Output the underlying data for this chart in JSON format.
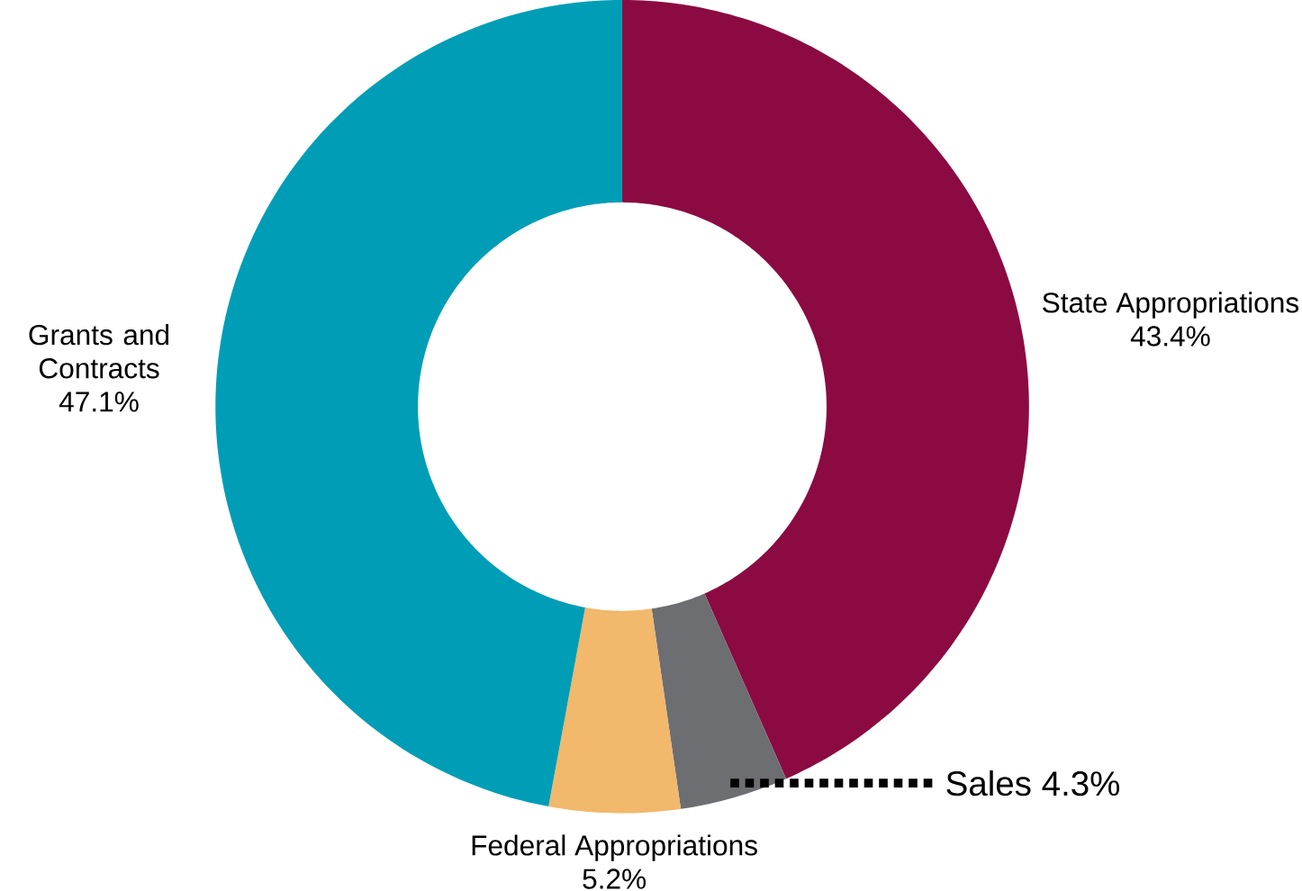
{
  "chart_data": {
    "type": "donut",
    "categories": [
      "State Appropriations",
      "Sales",
      "Federal Appropriations",
      "Grants and Contracts"
    ],
    "values": [
      43.4,
      4.3,
      5.2,
      47.1
    ],
    "colors": [
      "#8b0a41",
      "#6d6e71",
      "#f2b86b",
      "#009db6"
    ],
    "value_labels": [
      "43.4%",
      "4.3%",
      "5.2%",
      "47.1%"
    ]
  }
}
